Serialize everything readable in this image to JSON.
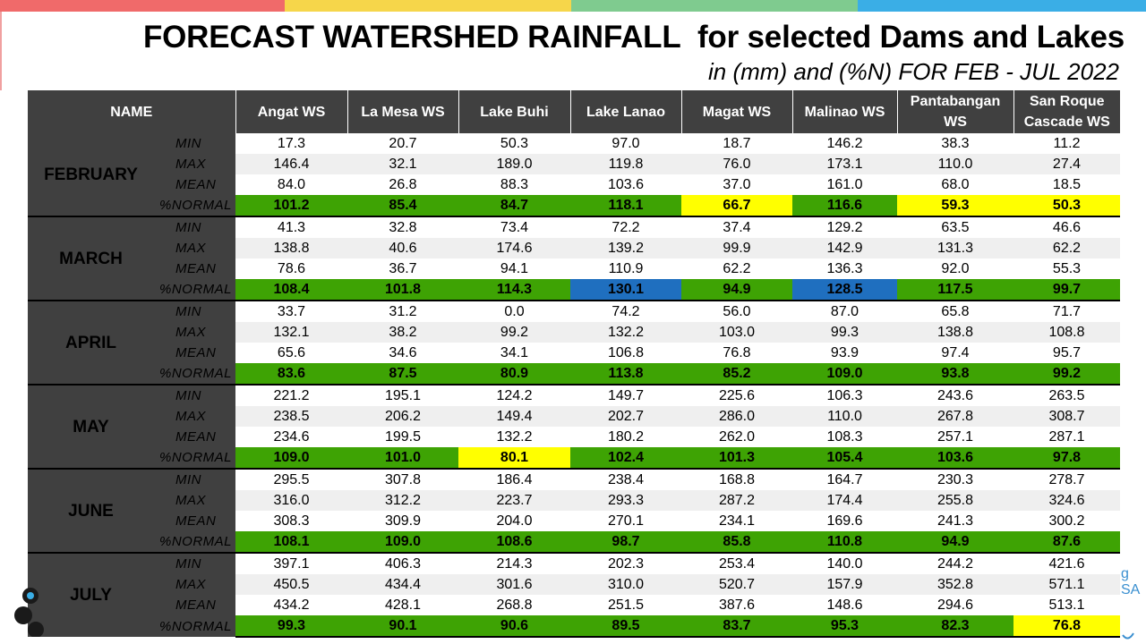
{
  "header": {
    "title": "FORECAST WATERSHED RAINFALL  for selected Dams and Lakes",
    "subtitle": "in (mm) and (%N) FOR FEB - JUL 2022",
    "stripe_colors": [
      "#f06a6a",
      "#f6d64a",
      "#7fcb8f",
      "#3aaee6"
    ]
  },
  "table": {
    "name_header": "NAME",
    "columns": [
      {
        "line1": "Angat WS",
        "line2": ""
      },
      {
        "line1": "La Mesa WS",
        "line2": ""
      },
      {
        "line1": "Lake Buhi",
        "line2": ""
      },
      {
        "line1": "Lake Lanao",
        "line2": ""
      },
      {
        "line1": "Magat WS",
        "line2": ""
      },
      {
        "line1": "Malinao WS",
        "line2": ""
      },
      {
        "line1": "Pantabangan",
        "line2": "WS"
      },
      {
        "line1": "San Roque",
        "line2": "Cascade WS"
      }
    ],
    "stat_labels": [
      "MIN",
      "MAX",
      "MEAN",
      "%NORMAL"
    ],
    "normal_colors": {
      "g": "#3ea304",
      "y": "#ffff00",
      "b": "#1f6fbf"
    },
    "months": [
      {
        "name": "FEBRUARY",
        "rows": [
          [
            "17.3",
            "20.7",
            "50.3",
            "97.0",
            "18.7",
            "146.2",
            "38.3",
            "11.2"
          ],
          [
            "146.4",
            "32.1",
            "189.0",
            "119.8",
            "76.0",
            "173.1",
            "110.0",
            "27.4"
          ],
          [
            "84.0",
            "26.8",
            "88.3",
            "103.6",
            "37.0",
            "161.0",
            "68.0",
            "18.5"
          ],
          [
            "101.2",
            "85.4",
            "84.7",
            "118.1",
            "66.7",
            "116.6",
            "59.3",
            "50.3"
          ]
        ],
        "normal_classes": [
          "g",
          "g",
          "g",
          "g",
          "y",
          "g",
          "y",
          "y"
        ]
      },
      {
        "name": "MARCH",
        "rows": [
          [
            "41.3",
            "32.8",
            "73.4",
            "72.2",
            "37.4",
            "129.2",
            "63.5",
            "46.6"
          ],
          [
            "138.8",
            "40.6",
            "174.6",
            "139.2",
            "99.9",
            "142.9",
            "131.3",
            "62.2"
          ],
          [
            "78.6",
            "36.7",
            "94.1",
            "110.9",
            "62.2",
            "136.3",
            "92.0",
            "55.3"
          ],
          [
            "108.4",
            "101.8",
            "114.3",
            "130.1",
            "94.9",
            "128.5",
            "117.5",
            "99.7"
          ]
        ],
        "normal_classes": [
          "g",
          "g",
          "g",
          "b",
          "g",
          "b",
          "g",
          "g"
        ]
      },
      {
        "name": "APRIL",
        "rows": [
          [
            "33.7",
            "31.2",
            "0.0",
            "74.2",
            "56.0",
            "87.0",
            "65.8",
            "71.7"
          ],
          [
            "132.1",
            "38.2",
            "99.2",
            "132.2",
            "103.0",
            "99.3",
            "138.8",
            "108.8"
          ],
          [
            "65.6",
            "34.6",
            "34.1",
            "106.8",
            "76.8",
            "93.9",
            "97.4",
            "95.7"
          ],
          [
            "83.6",
            "87.5",
            "80.9",
            "113.8",
            "85.2",
            "109.0",
            "93.8",
            "99.2"
          ]
        ],
        "normal_classes": [
          "g",
          "g",
          "g",
          "g",
          "g",
          "g",
          "g",
          "g"
        ]
      },
      {
        "name": "MAY",
        "rows": [
          [
            "221.2",
            "195.1",
            "124.2",
            "149.7",
            "225.6",
            "106.3",
            "243.6",
            "263.5"
          ],
          [
            "238.5",
            "206.2",
            "149.4",
            "202.7",
            "286.0",
            "110.0",
            "267.8",
            "308.7"
          ],
          [
            "234.6",
            "199.5",
            "132.2",
            "180.2",
            "262.0",
            "108.3",
            "257.1",
            "287.1"
          ],
          [
            "109.0",
            "101.0",
            "80.1",
            "102.4",
            "101.3",
            "105.4",
            "103.6",
            "97.8"
          ]
        ],
        "normal_classes": [
          "g",
          "g",
          "y",
          "g",
          "g",
          "g",
          "g",
          "g"
        ]
      },
      {
        "name": "JUNE",
        "rows": [
          [
            "295.5",
            "307.8",
            "186.4",
            "238.4",
            "168.8",
            "164.7",
            "230.3",
            "278.7"
          ],
          [
            "316.0",
            "312.2",
            "223.7",
            "293.3",
            "287.2",
            "174.4",
            "255.8",
            "324.6"
          ],
          [
            "308.3",
            "309.9",
            "204.0",
            "270.1",
            "234.1",
            "169.6",
            "241.3",
            "300.2"
          ],
          [
            "108.1",
            "109.0",
            "108.6",
            "98.7",
            "85.8",
            "110.8",
            "94.9",
            "87.6"
          ]
        ],
        "normal_classes": [
          "g",
          "g",
          "g",
          "g",
          "g",
          "g",
          "g",
          "g"
        ]
      },
      {
        "name": "JULY",
        "rows": [
          [
            "397.1",
            "406.3",
            "214.3",
            "202.3",
            "253.4",
            "140.0",
            "244.2",
            "421.6"
          ],
          [
            "450.5",
            "434.4",
            "301.6",
            "310.0",
            "520.7",
            "157.9",
            "352.8",
            "571.1"
          ],
          [
            "434.2",
            "428.1",
            "268.8",
            "251.5",
            "387.6",
            "148.6",
            "294.6",
            "513.1"
          ],
          [
            "99.3",
            "90.1",
            "90.6",
            "89.5",
            "83.7",
            "95.3",
            "82.3",
            "76.8"
          ]
        ],
        "normal_classes": [
          "g",
          "g",
          "g",
          "g",
          "g",
          "g",
          "g",
          "y"
        ]
      }
    ]
  }
}
